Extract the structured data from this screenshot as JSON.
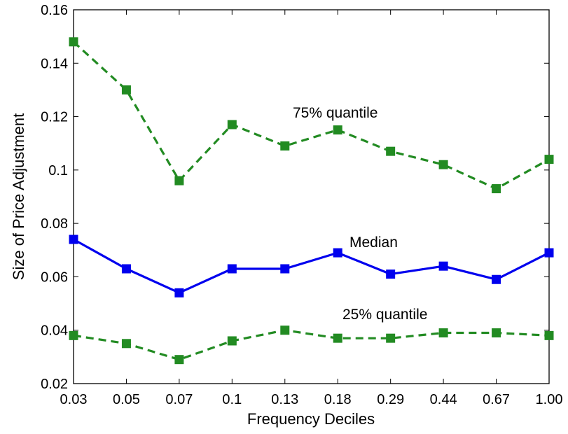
{
  "chart_data": {
    "type": "line",
    "title": "",
    "xlabel": "Frequency Deciles",
    "ylabel": "Size of Price Adjustment",
    "categories": [
      "0.03",
      "0.05",
      "0.07",
      "0.1",
      "0.13",
      "0.18",
      "0.29",
      "0.44",
      "0.67",
      "1.00"
    ],
    "ylim": [
      0.02,
      0.16
    ],
    "yticks": [
      "0.02",
      "0.04",
      "0.06",
      "0.08",
      "0.1",
      "0.12",
      "0.14",
      "0.16"
    ],
    "grid": false,
    "series": [
      {
        "name": "75% quantile",
        "color": "#228B22",
        "dashed": true,
        "values": [
          0.148,
          0.13,
          0.096,
          0.117,
          0.109,
          0.115,
          0.107,
          0.102,
          0.093,
          0.104
        ]
      },
      {
        "name": "Median",
        "color": "#0000EE",
        "dashed": false,
        "values": [
          0.074,
          0.063,
          0.054,
          0.063,
          0.063,
          0.069,
          0.061,
          0.064,
          0.059,
          0.069
        ]
      },
      {
        "name": "25% quantile",
        "color": "#228B22",
        "dashed": true,
        "values": [
          0.038,
          0.035,
          0.029,
          0.036,
          0.04,
          0.037,
          0.037,
          0.039,
          0.039,
          0.038
        ]
      }
    ]
  }
}
